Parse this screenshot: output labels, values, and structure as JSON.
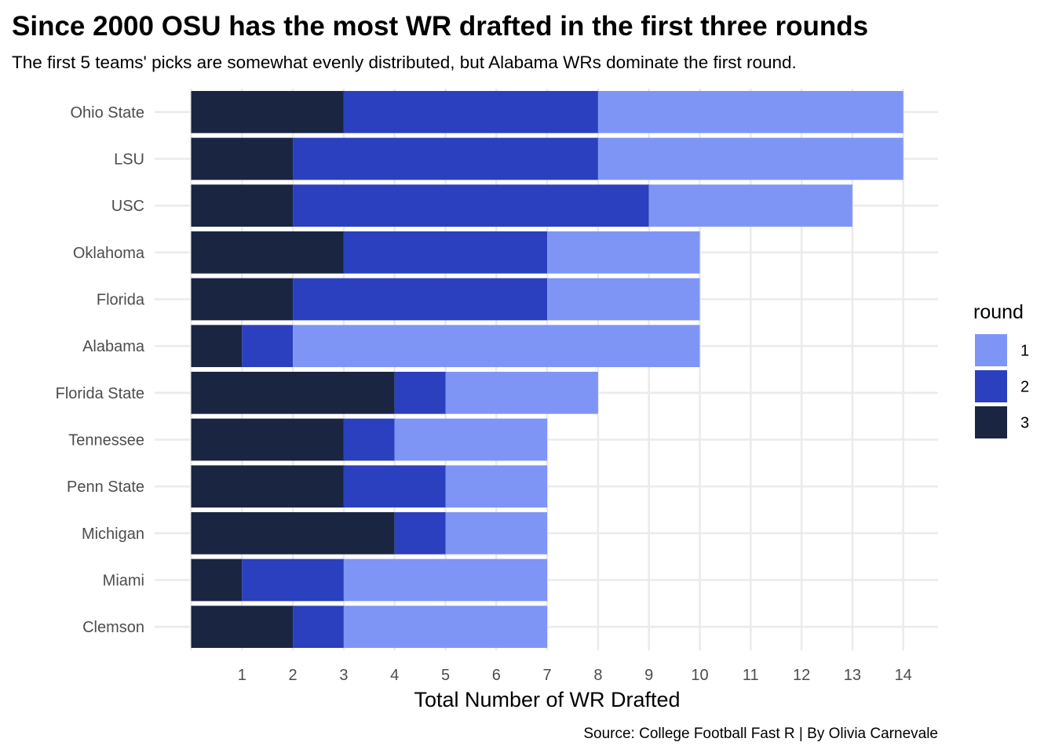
{
  "chart_data": {
    "type": "bar",
    "orientation": "horizontal",
    "stacked": true,
    "title": "Since 2000 OSU has the most WR drafted in the first three rounds",
    "subtitle": "The first 5 teams' picks are somewhat evenly distributed, but Alabama WRs dominate the first round.",
    "xlabel": "Total Number of WR Drafted",
    "ylabel": "",
    "caption": "Source: College Football Fast R | By Olivia Carnevale",
    "xlim": [
      0,
      14
    ],
    "xticks": [
      1,
      2,
      3,
      4,
      5,
      6,
      7,
      8,
      9,
      10,
      11,
      12,
      13,
      14
    ],
    "grid": true,
    "legend_title": "round",
    "legend_position": "right",
    "categories": [
      "Ohio State",
      "LSU",
      "USC",
      "Oklahoma",
      "Florida",
      "Alabama",
      "Florida State",
      "Tennessee",
      "Penn State",
      "Michigan",
      "Miami",
      "Clemson"
    ],
    "series": [
      {
        "name": "3",
        "color": "#1a2542",
        "values": [
          3,
          2,
          2,
          3,
          2,
          1,
          4,
          3,
          3,
          4,
          1,
          2
        ]
      },
      {
        "name": "2",
        "color": "#2b40be",
        "values": [
          5,
          6,
          7,
          4,
          5,
          1,
          1,
          1,
          2,
          1,
          2,
          1
        ]
      },
      {
        "name": "1",
        "color": "#7f95f6",
        "values": [
          6,
          6,
          4,
          3,
          3,
          8,
          3,
          3,
          2,
          2,
          4,
          4
        ]
      }
    ],
    "legend_order": [
      "1",
      "2",
      "3"
    ]
  }
}
